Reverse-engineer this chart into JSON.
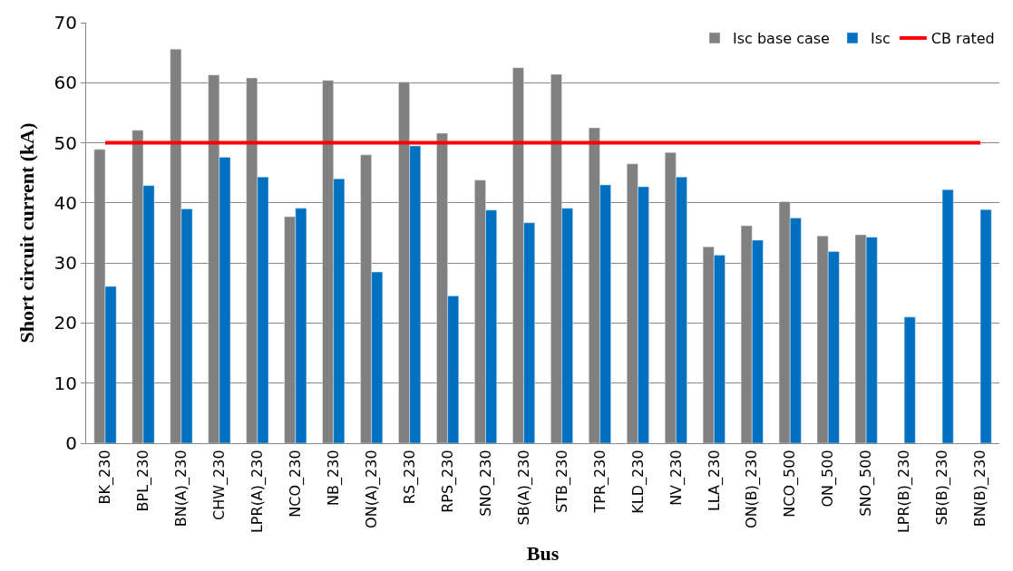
{
  "chart_data": {
    "type": "bar",
    "xlabel": "Bus",
    "ylabel": "Short circuit current (kA)",
    "categories": [
      "BK_230",
      "BPL_230",
      "BN(A)_230",
      "CHW_230",
      "LPR(A)_230",
      "NCO_230",
      "NB_230",
      "ON(A)_230",
      "RS_230",
      "RPS_230",
      "SNO_230",
      "SB(A)_230",
      "STB_230",
      "TPR_230",
      "KLD_230",
      "NV_230",
      "LLA_230",
      "ON(B)_230",
      "NCO_500",
      "ON_500",
      "SNO_500",
      "LPR(B)_230",
      "SB(B)_230",
      "BN(B)_230"
    ],
    "series": [
      {
        "name": "Isc base case",
        "color": "#808080",
        "values": [
          48.9,
          52.1,
          65.6,
          61.3,
          60.8,
          37.7,
          60.4,
          48.0,
          60.1,
          51.6,
          43.8,
          62.5,
          61.4,
          52.5,
          46.5,
          48.4,
          32.7,
          36.2,
          40.2,
          34.5,
          34.7,
          null,
          null,
          null
        ]
      },
      {
        "name": "Isc",
        "color": "#0070c0",
        "values": [
          26.1,
          42.9,
          39.0,
          47.6,
          44.3,
          39.1,
          44.0,
          28.5,
          49.5,
          24.5,
          38.8,
          36.7,
          39.1,
          43.0,
          42.7,
          44.3,
          31.3,
          33.8,
          37.5,
          31.9,
          34.3,
          21.0,
          42.2,
          38.9
        ]
      },
      {
        "name": "CB rated",
        "type": "line",
        "color": "#ff0000",
        "values": [
          50,
          50,
          50,
          50,
          50,
          50,
          50,
          50,
          50,
          50,
          50,
          50,
          50,
          50,
          50,
          50,
          50,
          50,
          50,
          50,
          50,
          50,
          50,
          50
        ]
      }
    ],
    "ylim": [
      0,
      70
    ],
    "yticks": [
      0,
      10,
      20,
      30,
      40,
      50,
      60,
      70
    ],
    "grid": "y",
    "legend": "top right"
  }
}
